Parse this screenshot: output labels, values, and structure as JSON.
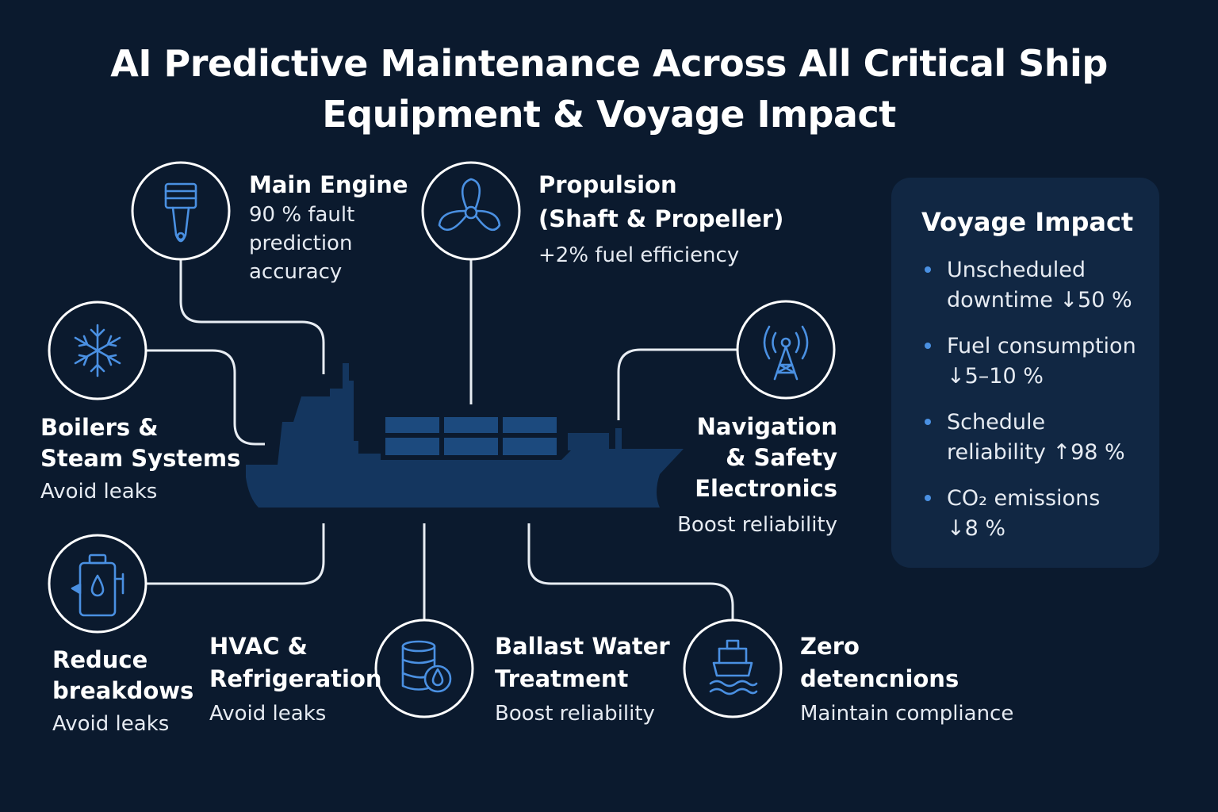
{
  "title": {
    "line1": "AI Predictive Maintenance Across All Critical Ship",
    "line2": "Equipment & Voyage Impact"
  },
  "colors": {
    "background": "#0b1a2e",
    "ship": "#14365f",
    "icon_stroke": "#4a90e2",
    "circle_stroke": "#ffffff",
    "panel": "#112743"
  },
  "equipment": {
    "main_engine": {
      "icon": "piston-icon",
      "title": "Main Engine",
      "detail_lines": [
        "90 % fault",
        "prediction",
        "accuracy"
      ]
    },
    "propulsion": {
      "icon": "propeller-icon",
      "title_lines": [
        "Propulsion",
        "(Shaft & Propeller)"
      ],
      "detail": "+2% fuel efficiency"
    },
    "boilers": {
      "icon": "snowflake-icon",
      "title_lines": [
        "Boilers &",
        "Steam Systems"
      ],
      "detail": "Avoid leaks"
    },
    "navigation": {
      "icon": "antenna-tower-icon",
      "title_lines": [
        "Navigation",
        "& Safety",
        "Electronics"
      ],
      "detail": "Boost reliability"
    },
    "reduce": {
      "icon": "pump-icon",
      "title_lines": [
        "Reduce",
        "breakdows"
      ],
      "detail": "Avoid leaks"
    },
    "hvac": {
      "title_lines": [
        "HVAC &",
        "Refrigeration"
      ],
      "detail": "Avoid leaks"
    },
    "ballast": {
      "icon": "tank-drop-icon",
      "title_lines": [
        "Ballast Water",
        "Treatment"
      ],
      "detail": "Boost reliability"
    },
    "zero": {
      "icon": "ship-waves-icon",
      "title_lines": [
        "Zero",
        "detencnions"
      ],
      "detail": "Maintain compliance"
    }
  },
  "voyage_impact": {
    "title": "Voyage Impact",
    "items": [
      {
        "lines": [
          "Unscheduled",
          "downtime ↓50 %"
        ]
      },
      {
        "lines": [
          "Fuel consumption",
          "↓5–10 %"
        ]
      },
      {
        "lines": [
          "Schedule",
          "reliability ↑98 %"
        ]
      },
      {
        "lines": [
          "CO₂ emissions",
          "↓8 %"
        ]
      }
    ]
  }
}
